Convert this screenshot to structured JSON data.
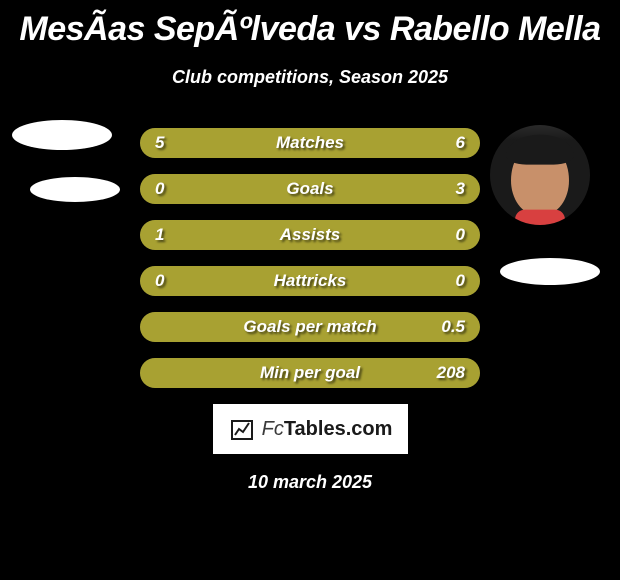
{
  "title": "MesÃas SepÃºlveda vs Rabello Mella",
  "subtitle": "Club competitions, Season 2025",
  "date": "10 march 2025",
  "footer": {
    "brand_part1": "Fc",
    "brand_part2": "Tables",
    "brand_suffix": ".com",
    "background": "#ffffff",
    "text_color": "#1a1a1a"
  },
  "colors": {
    "background": "#000000",
    "bar_fill": "#a8a132",
    "bar_track": "#2a2a2a",
    "text": "#ffffff",
    "ellipse": "#ffffff"
  },
  "player_left": {
    "name": "MesÃas SepÃºlveda"
  },
  "player_right": {
    "name": "Rabello Mella"
  },
  "stats": [
    {
      "label": "Matches",
      "left_value": "5",
      "right_value": "6",
      "left_width_pct": 45,
      "right_width_pct": 55,
      "left_bg": "#a8a132",
      "right_bg": "#a8a132"
    },
    {
      "label": "Goals",
      "left_value": "0",
      "right_value": "3",
      "left_width_pct": 18,
      "right_width_pct": 82,
      "left_bg": "#a8a132",
      "right_bg": "#a8a132"
    },
    {
      "label": "Assists",
      "left_value": "1",
      "right_value": "0",
      "left_width_pct": 80,
      "right_width_pct": 20,
      "left_bg": "#a8a132",
      "right_bg": "#a8a132"
    },
    {
      "label": "Hattricks",
      "left_value": "0",
      "right_value": "0",
      "left_width_pct": 50,
      "right_width_pct": 50,
      "left_bg": "#a8a132",
      "right_bg": "#a8a132"
    },
    {
      "label": "Goals per match",
      "left_value": "",
      "right_value": "0.5",
      "left_width_pct": 0,
      "right_width_pct": 100,
      "left_bg": "#a8a132",
      "right_bg": "#a8a132"
    },
    {
      "label": "Min per goal",
      "left_value": "",
      "right_value": "208",
      "left_width_pct": 0,
      "right_width_pct": 100,
      "left_bg": "#a8a132",
      "right_bg": "#a8a132"
    }
  ]
}
